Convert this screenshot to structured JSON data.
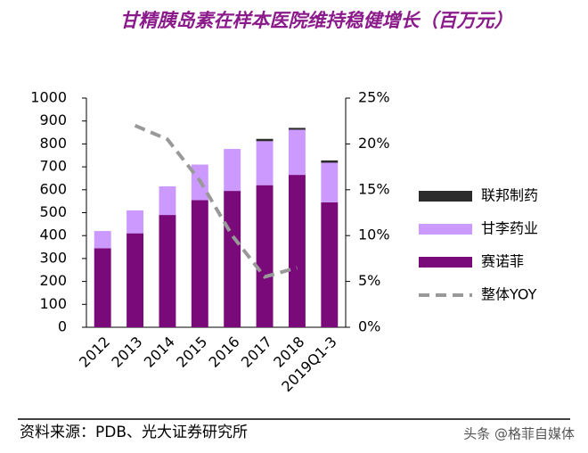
{
  "chart_data": {
    "type": "bar",
    "title": "甘精胰岛素在样本医院维持稳健增长（百万元）",
    "categories": [
      "2012",
      "2013",
      "2014",
      "2015",
      "2016",
      "2017",
      "2018",
      "2019Q1-3"
    ],
    "stacked": true,
    "series": [
      {
        "name": "联邦制药",
        "color": "#2b2b2b",
        "values": [
          0,
          0,
          0,
          0,
          0,
          10,
          8,
          10
        ]
      },
      {
        "name": "甘李药业",
        "color": "#cc99ff",
        "values": [
          75,
          100,
          125,
          155,
          183,
          192,
          197,
          173
        ]
      },
      {
        "name": "赛诺菲",
        "color": "#7a0a7a",
        "values": [
          345,
          410,
          490,
          555,
          595,
          620,
          665,
          545
        ]
      },
      {
        "name": "整体YOY",
        "type": "line",
        "axis": "y2",
        "color": "#999999",
        "dashed": true,
        "values": [
          null,
          22,
          20.5,
          16,
          10,
          5.5,
          6.5,
          null
        ]
      }
    ],
    "ylim": [
      0,
      1000
    ],
    "yticks": [
      0,
      100,
      200,
      300,
      400,
      500,
      600,
      700,
      800,
      900,
      1000
    ],
    "y2lim": [
      0,
      25
    ],
    "y2ticks": [
      {
        "value": 0,
        "label": "0%"
      },
      {
        "value": 5,
        "label": "5%"
      },
      {
        "value": 10,
        "label": "10%"
      },
      {
        "value": 15,
        "label": "15%"
      },
      {
        "value": 20,
        "label": "20%"
      },
      {
        "value": 25,
        "label": "25%"
      }
    ],
    "source": "资料来源：PDB、光大证券研究所",
    "watermark": "头条 @格菲自媒体"
  }
}
